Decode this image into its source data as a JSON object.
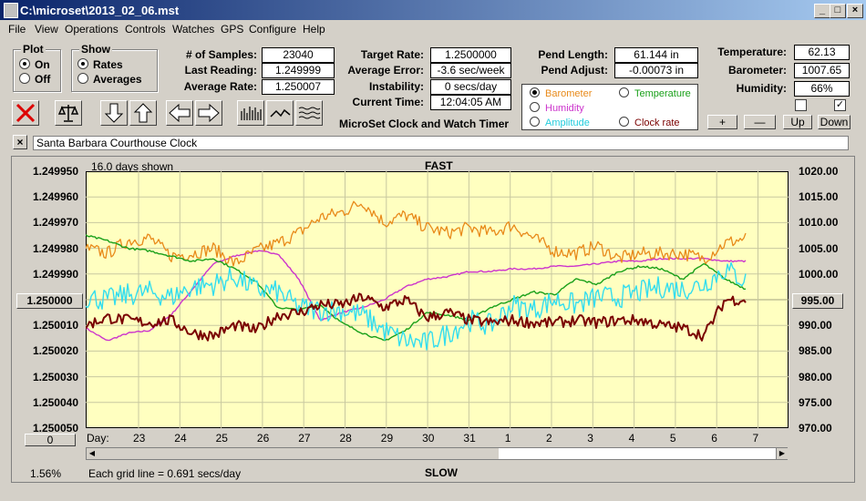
{
  "window": {
    "title": "C:\\microset\\2013_02_06.mst"
  },
  "menu": [
    "File",
    "View",
    "Operations",
    "Controls",
    "Watches",
    "GPS",
    "Configure",
    "Help"
  ],
  "plot_group": {
    "title": "Plot",
    "on": "On",
    "off": "Off",
    "selected": "On"
  },
  "show_group": {
    "title": "Show",
    "rates": "Rates",
    "averages": "Averages",
    "selected": "Rates"
  },
  "stats": {
    "samples_label": "# of Samples:",
    "samples": "23040",
    "last_reading_label": "Last Reading:",
    "last_reading": "1.249999",
    "average_rate_label": "Average Rate:",
    "average_rate": "1.250007",
    "target_rate_label": "Target Rate:",
    "target_rate": "1.2500000",
    "average_error_label": "Average Error:",
    "average_error": "-3.6 sec/week",
    "instability_label": "Instability:",
    "instability": "0 secs/day",
    "current_time_label": "Current Time:",
    "current_time": "12:04:05 AM",
    "pend_length_label": "Pend Length:",
    "pend_length": "61.144 in",
    "pend_adjust_label": "Pend Adjust:",
    "pend_adjust": "-0.00073 in",
    "temperature_label": "Temperature:",
    "temperature": "62.13",
    "barometer_label": "Barometer:",
    "barometer": "1007.65",
    "humidity_label": "Humidity:",
    "humidity": "66%"
  },
  "app_name": "MicroSet Clock and Watch Timer",
  "sensor_select": {
    "barometer": "Barometer",
    "temperature": "Temperature",
    "humidity": "Humidity",
    "amplitude": "Amplitude",
    "clock_rate": "Clock rate",
    "selected": "Barometer"
  },
  "sensor_buttons": {
    "plus": "+",
    "minus": "—",
    "up": "Up",
    "down": "Down"
  },
  "checkboxes": [
    false,
    true
  ],
  "clock_name": "Santa Barbara Courthouse Clock",
  "colors": {
    "barometer": "#e88a1a",
    "temperature": "#1aa01a",
    "humidity": "#cc33cc",
    "amplitude": "#33ddee",
    "rate": "#7a0000",
    "plot_bg": "#ffffc0"
  },
  "chart_data": {
    "type": "line",
    "top_label": "FAST",
    "bottom_label": "SLOW",
    "days_shown": "16.0 days shown",
    "grid_note": "Each grid line = 0.691 secs/day",
    "percent": "1.56%",
    "offset_button": "0",
    "left_axis": {
      "ticks": [
        "1.249950",
        "1.249960",
        "1.249970",
        "1.249980",
        "1.249990",
        "1.250000",
        "1.250010",
        "1.250020",
        "1.250030",
        "1.250040",
        "1.250050"
      ],
      "range": [
        1.24995,
        1.25005
      ],
      "inverted": true,
      "center_button": "1.250000"
    },
    "right_axis": {
      "ticks": [
        "1020.00",
        "1015.00",
        "1010.00",
        "1005.00",
        "1000.00",
        "995.00",
        "990.00",
        "985.00",
        "980.00",
        "975.00",
        "970.00"
      ],
      "range": [
        970,
        1020
      ],
      "center_button": "995.00"
    },
    "x_axis": {
      "label": "Day:",
      "ticks": [
        "23",
        "24",
        "25",
        "26",
        "27",
        "28",
        "29",
        "30",
        "31",
        "1",
        "2",
        "3",
        "4",
        "5",
        "6",
        "7"
      ]
    },
    "series": [
      {
        "key": "barometer",
        "anchors": [
          [
            0,
            1005
          ],
          [
            1,
            1004
          ],
          [
            2,
            1006.5
          ],
          [
            3,
            1007
          ],
          [
            4,
            1003.5
          ],
          [
            5,
            1004
          ],
          [
            6,
            1005
          ],
          [
            7,
            1002
          ],
          [
            8,
            1004.5
          ],
          [
            9,
            1006
          ],
          [
            10,
            1008
          ],
          [
            11,
            1011
          ],
          [
            12,
            1012
          ],
          [
            13,
            1014
          ],
          [
            14,
            1010
          ],
          [
            15,
            1011.5
          ],
          [
            16,
            1009
          ],
          [
            17,
            1008
          ],
          [
            18,
            1009
          ],
          [
            19,
            1008
          ],
          [
            20,
            1009.5
          ],
          [
            21,
            1007
          ],
          [
            22,
            1004.5
          ],
          [
            23,
            1004
          ],
          [
            24,
            1005.5
          ],
          [
            25,
            1003
          ],
          [
            26,
            1004
          ],
          [
            27,
            1004
          ],
          [
            28,
            1004
          ],
          [
            29,
            1003
          ],
          [
            30,
            1006
          ],
          [
            31,
            1007
          ]
        ]
      },
      {
        "key": "temperature",
        "anchors": [
          [
            0,
            1007.5
          ],
          [
            1,
            1006.5
          ],
          [
            2,
            1005
          ],
          [
            3,
            1004.5
          ],
          [
            4,
            1003.5
          ],
          [
            5,
            1002.5
          ],
          [
            6,
            1003
          ],
          [
            7,
            1001
          ],
          [
            8,
            998.5
          ],
          [
            9,
            993.5
          ],
          [
            10,
            993
          ],
          [
            11,
            994
          ],
          [
            12,
            990.5
          ],
          [
            13,
            988.5
          ],
          [
            14,
            987
          ],
          [
            15,
            989
          ],
          [
            16,
            992.5
          ],
          [
            17,
            992
          ],
          [
            18,
            991
          ],
          [
            19,
            993.5
          ],
          [
            20,
            995
          ],
          [
            21,
            996.5
          ],
          [
            22,
            996
          ],
          [
            23,
            999
          ],
          [
            24,
            998
          ],
          [
            25,
            1000.5
          ],
          [
            26,
            1001.5
          ],
          [
            27,
            1001
          ],
          [
            28,
            999
          ],
          [
            29,
            1002
          ],
          [
            30,
            999
          ],
          [
            31,
            997
          ]
        ]
      },
      {
        "key": "humidity",
        "anchors": [
          [
            0,
            989.5
          ],
          [
            1,
            987
          ],
          [
            2,
            988.5
          ],
          [
            3,
            989
          ],
          [
            4,
            992
          ],
          [
            5,
            997
          ],
          [
            6,
            1002
          ],
          [
            7,
            1003.5
          ],
          [
            8,
            1004.5
          ],
          [
            9,
            1004
          ],
          [
            10,
            999
          ],
          [
            11,
            991
          ],
          [
            12,
            992.5
          ],
          [
            13,
            993.5
          ],
          [
            14,
            995
          ],
          [
            15,
            997.5
          ],
          [
            16,
            999
          ],
          [
            17,
            999.5
          ],
          [
            18,
            1000.5
          ],
          [
            19,
            1000.5
          ],
          [
            20,
            1001
          ],
          [
            21,
            1001
          ],
          [
            22,
            1001.5
          ],
          [
            23,
            1001.5
          ],
          [
            24,
            1002
          ],
          [
            25,
            1002.5
          ],
          [
            26,
            1002.5
          ],
          [
            27,
            1003
          ],
          [
            28,
            1003
          ],
          [
            29,
            1003
          ],
          [
            30,
            1002.5
          ],
          [
            31,
            1002.5
          ]
        ]
      },
      {
        "key": "amplitude",
        "anchors": [
          [
            0,
            995.5
          ],
          [
            1,
            995
          ],
          [
            2,
            996
          ],
          [
            3,
            996.5
          ],
          [
            4,
            995.5
          ],
          [
            5,
            997.5
          ],
          [
            6,
            998
          ],
          [
            7,
            999.5
          ],
          [
            8,
            997
          ],
          [
            9,
            996.5
          ],
          [
            10,
            993.5
          ],
          [
            11,
            993
          ],
          [
            12,
            993
          ],
          [
            13,
            992
          ],
          [
            14,
            989
          ],
          [
            15,
            987
          ],
          [
            16,
            986.5
          ],
          [
            17,
            988.5
          ],
          [
            18,
            991
          ],
          [
            19,
            990
          ],
          [
            20,
            994
          ],
          [
            21,
            993
          ],
          [
            22,
            995
          ],
          [
            23,
            994
          ],
          [
            24,
            995.5
          ],
          [
            25,
            995.5
          ],
          [
            26,
            996.5
          ],
          [
            27,
            997.5
          ],
          [
            28,
            997
          ],
          [
            29,
            998
          ],
          [
            30,
            1001
          ],
          [
            31,
            998.5
          ]
        ]
      },
      {
        "key": "rate",
        "anchors": [
          [
            0,
            990
          ],
          [
            1,
            991.5
          ],
          [
            2,
            991
          ],
          [
            3,
            990.5
          ],
          [
            4,
            991
          ],
          [
            5,
            988.5
          ],
          [
            6,
            988
          ],
          [
            7,
            990
          ],
          [
            8,
            989
          ],
          [
            9,
            992
          ],
          [
            10,
            992.5
          ],
          [
            11,
            994
          ],
          [
            12,
            994
          ],
          [
            13,
            995.5
          ],
          [
            14,
            993.5
          ],
          [
            15,
            995
          ],
          [
            16,
            991.5
          ],
          [
            17,
            992.5
          ],
          [
            18,
            991
          ],
          [
            19,
            990.5
          ],
          [
            20,
            991
          ],
          [
            21,
            990.5
          ],
          [
            22,
            990.5
          ],
          [
            23,
            991
          ],
          [
            24,
            990.5
          ],
          [
            25,
            991
          ],
          [
            26,
            991
          ],
          [
            27,
            990
          ],
          [
            28,
            989.5
          ],
          [
            29,
            988
          ],
          [
            30,
            995
          ],
          [
            31,
            995
          ]
        ]
      }
    ]
  }
}
